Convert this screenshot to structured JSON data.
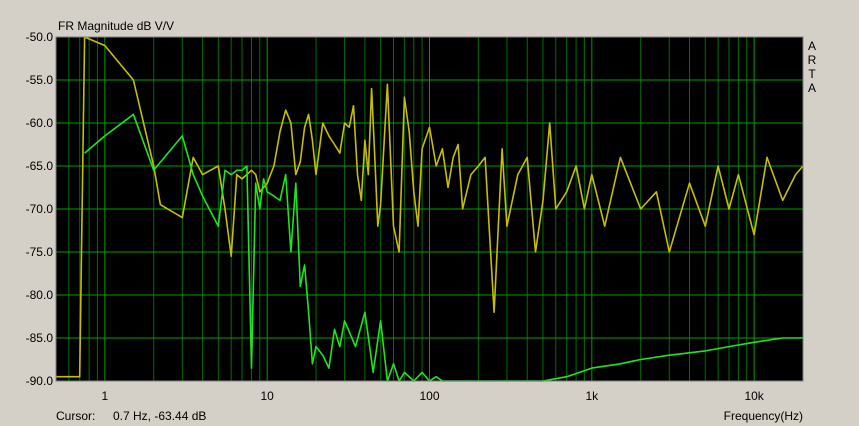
{
  "header": {
    "title": "FR Magnitude dB V/V",
    "brand_letters": [
      "A",
      "R",
      "T",
      "A"
    ]
  },
  "footer": {
    "cursor_label": "Cursor:",
    "cursor_value": "0.7 Hz, -63.44 dB",
    "x_axis_title": "Frequency(Hz)"
  },
  "colors": {
    "background": "#000000",
    "grid_major": "#00a000",
    "grid_minor": "#007000",
    "series_yellow": "#c8be00",
    "series_green": "#1ee61e",
    "frame": "#d4d0c8"
  },
  "chart_data": {
    "type": "line",
    "title": "FR Magnitude dB V/V",
    "xlabel": "Frequency(Hz)",
    "ylabel": "",
    "x_scale": "log",
    "xlim": [
      0.5,
      20000
    ],
    "ylim": [
      -90,
      -50
    ],
    "y_ticks": [
      "-50.0",
      "-55.0",
      "-60.0",
      "-65.0",
      "-70.0",
      "-75.0",
      "-80.0",
      "-85.0",
      "-90.0"
    ],
    "x_ticks": [
      {
        "value": 1,
        "label": "1"
      },
      {
        "value": 10,
        "label": "10"
      },
      {
        "value": 100,
        "label": "100"
      },
      {
        "value": 1000,
        "label": "1k"
      },
      {
        "value": 10000,
        "label": "10k"
      }
    ],
    "grid": true,
    "series": [
      {
        "color": "#c8be00",
        "x": [
          0.5,
          0.7,
          0.75,
          1.0,
          1.5,
          2.0,
          2.2,
          3.0,
          3.5,
          4.0,
          5.0,
          5.5,
          6.0,
          6.5,
          7.0,
          8.0,
          8.5,
          9.0,
          10.0,
          11.0,
          12.0,
          13.0,
          14.0,
          15.0,
          16.0,
          17.0,
          18.0,
          19.0,
          20.0,
          22.0,
          24.0,
          26.0,
          28.0,
          30.0,
          32.0,
          34.0,
          36.0,
          38.0,
          40.0,
          42.0,
          44.0,
          46.0,
          48.0,
          50.0,
          55.0,
          60.0,
          65.0,
          70.0,
          75.0,
          80.0,
          85.0,
          90.0,
          100.0,
          110.0,
          120.0,
          130.0,
          140.0,
          150.0,
          160.0,
          180.0,
          200.0,
          220.0,
          250.0,
          280.0,
          300.0,
          350.0,
          400.0,
          450.0,
          500.0,
          550.0,
          600.0,
          700.0,
          800.0,
          900.0,
          1000.0,
          1200.0,
          1500.0,
          2000.0,
          2500.0,
          3000.0,
          4000.0,
          5000.0,
          6000.0,
          7000.0,
          8000.0,
          10000.0,
          12000.0,
          15000.0,
          18000.0,
          20000.0
        ],
        "y": [
          -89.5,
          -89.5,
          -50.0,
          -51.0,
          -55.0,
          -65.0,
          -69.5,
          -71.0,
          -64.0,
          -66.0,
          -65.0,
          -70.0,
          -75.5,
          -66.0,
          -66.5,
          -65.5,
          -66.0,
          -68.0,
          -67.0,
          -65.0,
          -61.0,
          -58.5,
          -60.0,
          -66.0,
          -64.5,
          -60.5,
          -59.0,
          -62.0,
          -66.0,
          -60.0,
          -61.5,
          -62.5,
          -63.5,
          -60.0,
          -60.5,
          -58.0,
          -66.0,
          -69.0,
          -62.0,
          -66.0,
          -56.0,
          -64.0,
          -72.0,
          -69.5,
          -55.5,
          -72.0,
          -75.0,
          -57.0,
          -61.0,
          -68.0,
          -72.0,
          -63.0,
          -60.5,
          -65.0,
          -63.0,
          -67.5,
          -64.0,
          -62.5,
          -70.0,
          -66.0,
          -65.0,
          -64.0,
          -82.0,
          -63.0,
          -72.0,
          -66.0,
          -64.0,
          -75.0,
          -69.0,
          -60.0,
          -70.0,
          -68.0,
          -65.0,
          -70.0,
          -66.0,
          -72.0,
          -64.0,
          -70.0,
          -68.0,
          -75.0,
          -67.0,
          -72.0,
          -65.0,
          -70.0,
          -66.0,
          -73.0,
          -64.0,
          -69.0,
          -66.0,
          -65.0
        ]
      },
      {
        "color": "#1ee61e",
        "x": [
          0.75,
          1.0,
          1.5,
          2.0,
          3.0,
          3.5,
          4.0,
          5.0,
          5.5,
          6.0,
          6.5,
          7.0,
          7.5,
          8.0,
          8.5,
          9.0,
          9.5,
          10.0,
          11.0,
          12.0,
          13.0,
          14.0,
          15.0,
          16.0,
          17.0,
          18.0,
          19.0,
          20.0,
          22.0,
          24.0,
          26.0,
          28.0,
          30.0,
          35.0,
          40.0,
          45.0,
          50.0,
          55.0,
          60.0,
          65.0,
          70.0,
          80.0,
          90.0,
          100.0,
          110.0,
          120.0,
          150.0,
          200.0,
          300.0,
          500.0,
          700.0,
          1000.0,
          1500.0,
          2000.0,
          3000.0,
          5000.0,
          7000.0,
          10000.0,
          15000.0,
          20000.0
        ],
        "y": [
          -63.5,
          -61.5,
          -59.0,
          -65.5,
          -61.5,
          -66.0,
          -68.5,
          -72.0,
          -65.5,
          -66.0,
          -65.5,
          -65.5,
          -65.0,
          -88.5,
          -67.0,
          -70.0,
          -66.5,
          -68.0,
          -68.5,
          -69.0,
          -66.0,
          -75.0,
          -67.0,
          -79.0,
          -76.5,
          -82.0,
          -88.0,
          -86.0,
          -87.0,
          -88.5,
          -84.0,
          -86.0,
          -83.0,
          -86.0,
          -82.0,
          -89.0,
          -83.0,
          -90.0,
          -88.0,
          -90.0,
          -89.0,
          -90.0,
          -89.0,
          -90.0,
          -89.5,
          -90.0,
          -90.0,
          -90.0,
          -90.0,
          -90.0,
          -89.5,
          -88.5,
          -88.0,
          -87.5,
          -87.0,
          -86.5,
          -86.0,
          -85.5,
          -85.0,
          -85.0
        ]
      }
    ]
  }
}
